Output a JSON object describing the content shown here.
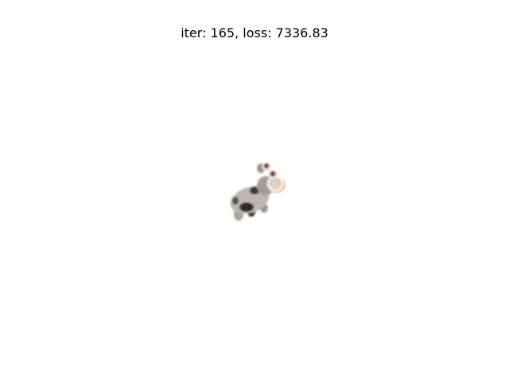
{
  "figure": {
    "title": "iter: 165, loss: 7336.83",
    "background_color": "#ffffff"
  },
  "render": {
    "subject": "cow-mesh-render",
    "colors": {
      "body": "#b8b1ad",
      "spots": "#2e2b2b",
      "snout": "#e7c4a8",
      "eye": "#7a2e12",
      "rim": "#ffffff"
    }
  }
}
